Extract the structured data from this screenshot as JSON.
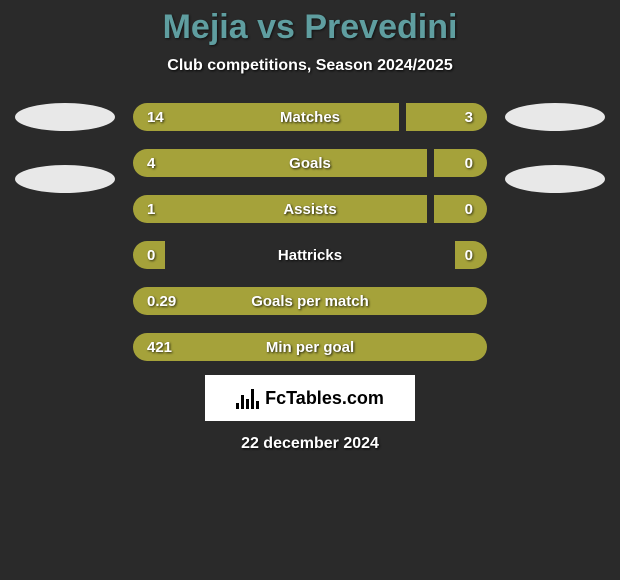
{
  "title": "Mejia vs Prevedini",
  "subtitle": "Club competitions, Season 2024/2025",
  "date": "22 december 2024",
  "logo_text": "FcTables.com",
  "colors": {
    "title": "#5f9ea0",
    "bar": "#a5a23a",
    "text": "#ffffff",
    "background": "#2a2a2a"
  },
  "stats": [
    {
      "label": "Matches",
      "left_val": "14",
      "right_val": "3",
      "left_pct": 75,
      "gap_pct": 2,
      "right_pct": 23
    },
    {
      "label": "Goals",
      "left_val": "4",
      "right_val": "0",
      "left_pct": 83,
      "gap_pct": 2,
      "right_pct": 15
    },
    {
      "label": "Assists",
      "left_val": "1",
      "right_val": "0",
      "left_pct": 83,
      "gap_pct": 2,
      "right_pct": 15
    },
    {
      "label": "Hattricks",
      "left_val": "0",
      "right_val": "0",
      "left_pct": 9,
      "gap_pct": 82,
      "right_pct": 9
    },
    {
      "label": "Goals per match",
      "left_val": "0.29",
      "right_val": "",
      "left_pct": 100,
      "gap_pct": 0,
      "right_pct": 0
    },
    {
      "label": "Min per goal",
      "left_val": "421",
      "right_val": "",
      "left_pct": 100,
      "gap_pct": 0,
      "right_pct": 0
    }
  ]
}
